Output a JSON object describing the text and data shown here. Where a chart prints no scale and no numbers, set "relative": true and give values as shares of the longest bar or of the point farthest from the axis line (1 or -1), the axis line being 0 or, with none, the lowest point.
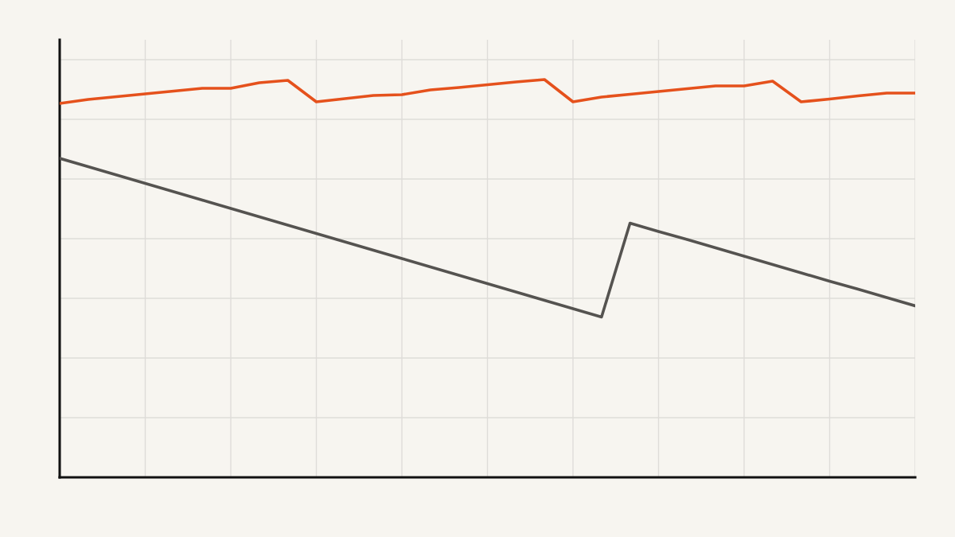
{
  "chart_data": {
    "type": "line",
    "relative": true,
    "grid": true,
    "tick_labels": false,
    "categories": [
      null,
      null,
      null,
      null,
      null,
      null,
      null,
      null,
      null,
      null,
      null,
      null,
      null,
      null,
      null,
      null,
      null,
      null,
      null,
      null,
      null,
      null,
      null,
      null,
      null,
      null,
      null,
      null,
      null,
      null,
      null
    ],
    "series": [
      {
        "color": "#e5511c",
        "values": [
          0.94,
          0.95,
          0.957,
          0.964,
          0.971,
          0.978,
          0.978,
          0.992,
          0.998,
          0.944,
          0.952,
          0.96,
          0.962,
          0.974,
          0.98,
          0.987,
          0.994,
          1.0,
          0.944,
          0.956,
          0.963,
          0.97,
          0.977,
          0.984,
          0.984,
          0.996,
          0.944,
          0.951,
          0.959,
          0.966,
          0.966
        ]
      },
      {
        "color": "#555350",
        "values": [
          0.802,
          0.781,
          0.76,
          0.739,
          0.718,
          0.697,
          0.676,
          0.655,
          0.634,
          0.613,
          0.592,
          0.571,
          0.55,
          0.529,
          0.508,
          0.487,
          0.466,
          0.445,
          0.424,
          0.403,
          0.639,
          0.618,
          0.598,
          0.577,
          0.556,
          0.535,
          0.514,
          0.493,
          0.473,
          0.452,
          0.431
        ]
      }
    ]
  }
}
